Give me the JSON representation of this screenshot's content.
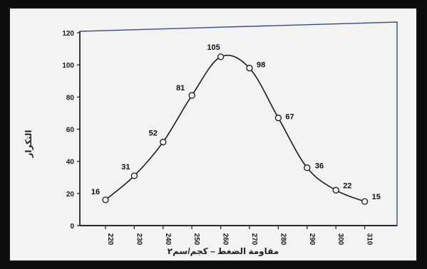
{
  "chart_data": {
    "type": "line",
    "title": "",
    "xlabel": "مقاومة الضغط – كجم/سم٢",
    "ylabel": "التكرار",
    "x": [
      220,
      230,
      240,
      250,
      260,
      270,
      280,
      290,
      300,
      310
    ],
    "series": [
      {
        "values": [
          16,
          31,
          52,
          81,
          105,
          98,
          67,
          36,
          22,
          15
        ],
        "labels": [
          "16",
          "31",
          "52",
          "81",
          "105",
          "98",
          "67",
          "36",
          "22",
          "15"
        ]
      }
    ],
    "x_ticks": [
      "220",
      "230",
      "240",
      "250",
      "260",
      "270",
      "280",
      "290",
      "300",
      "310"
    ],
    "y_ticks": [
      "0",
      "20",
      "40",
      "60",
      "80",
      "100",
      "120"
    ],
    "ylim": [
      0,
      120
    ],
    "xlim": [
      220,
      310
    ],
    "grid": false,
    "legend": "none",
    "line_color": "#1c1c1c",
    "marker": "open-circle"
  }
}
